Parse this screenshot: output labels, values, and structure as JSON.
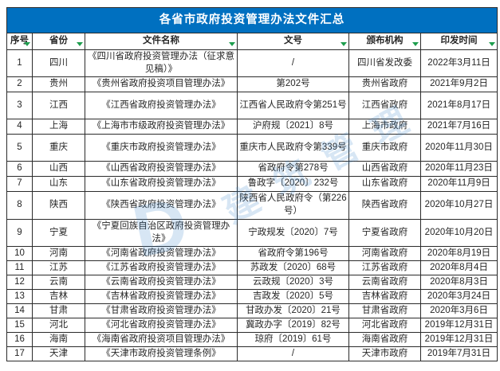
{
  "table": {
    "title": "各省市政府投资管理办法文件汇总",
    "columns": [
      "序号",
      "省份",
      "文件名称",
      "文号",
      "颁布机构",
      "印发时间"
    ],
    "rows": [
      {
        "no": "1",
        "province": "四川",
        "doc_name": "《四川省政府投资管理办法（征求意见稿）》",
        "doc_no": "/",
        "agency": "四川省发改委",
        "date": "2022年3月11日",
        "doc_no_flagged": false
      },
      {
        "no": "2",
        "province": "贵州",
        "doc_name": "《贵州省政府投资项目管理办法》",
        "doc_no": "第202号",
        "agency": "贵州省政府",
        "date": "2021年9月2日",
        "doc_no_flagged": false
      },
      {
        "no": "3",
        "province": "江西",
        "doc_name": "《江西省政府投资管理办法》",
        "doc_no": "江西省人民政府令第251号",
        "agency": "江西省政府",
        "date": "2021年8月17日",
        "doc_no_flagged": false
      },
      {
        "no": "4",
        "province": "上海",
        "doc_name": "《上海市市级政府投资管理办法》",
        "doc_no": "沪府规〔2021〕8号",
        "agency": "上海市政府",
        "date": "2021年7月16日",
        "doc_no_flagged": false
      },
      {
        "no": "5",
        "province": "重庆",
        "doc_name": "《重庆市政府投资管理办法》",
        "doc_no": "重庆市人民政府令第339号",
        "agency": "重庆市政府",
        "date": "2020年11月30日",
        "doc_no_flagged": false
      },
      {
        "no": "6",
        "province": "山西",
        "doc_name": "《山西省政府投资管理办法》",
        "doc_no": "省政府令第278号",
        "agency": "山西省政府",
        "date": "2020年11月23日",
        "doc_no_flagged": true
      },
      {
        "no": "7",
        "province": "山东",
        "doc_name": "《山东省政府投资管理办法》",
        "doc_no": "鲁政字〔2020〕232号",
        "agency": "山东省政府",
        "date": "2020年11月9日",
        "doc_no_flagged": false
      },
      {
        "no": "8",
        "province": "陕西",
        "doc_name": "《陕西省政府投资管理办法》",
        "doc_no": "陕西省人民政府令（第226号）",
        "agency": "陕西省政府",
        "date": "2020年10月27日",
        "doc_no_flagged": false
      },
      {
        "no": "9",
        "province": "宁夏",
        "doc_name": "《宁夏回族自治区政府投资管理办法》",
        "doc_no": "宁政规发〔2020〕7号",
        "agency": "宁夏省政府",
        "date": "2020年10月20日",
        "doc_no_flagged": true
      },
      {
        "no": "10",
        "province": "河南",
        "doc_name": "《河南省政府投资管理办法》",
        "doc_no": "省政府令第196号",
        "agency": "河南省政府",
        "date": "2020年8月19日",
        "doc_no_flagged": false
      },
      {
        "no": "11",
        "province": "江苏",
        "doc_name": "《江苏省政府投资管理办法》",
        "doc_no": "苏政发〔2020〕68号",
        "agency": "江苏省政府",
        "date": "2020年8月4日",
        "doc_no_flagged": false
      },
      {
        "no": "12",
        "province": "云南",
        "doc_name": "《云南省政府投资管理办法》",
        "doc_no": "云政规〔2020〕3号",
        "agency": "云南省政府",
        "date": "2020年8月3日",
        "doc_no_flagged": false
      },
      {
        "no": "13",
        "province": "吉林",
        "doc_name": "《吉林省政府投资管理办法》",
        "doc_no": "吉政发〔2020〕5号",
        "agency": "吉林省政府",
        "date": "2020年3月24日",
        "doc_no_flagged": false
      },
      {
        "no": "14",
        "province": "甘肃",
        "doc_name": "《甘肃省政府投资管理办法》",
        "doc_no": "甘政办发〔2020〕21号",
        "agency": "甘肃省政府",
        "date": "2020年3月6日",
        "doc_no_flagged": false
      },
      {
        "no": "15",
        "province": "河北",
        "doc_name": "《河北省政府投资管理办法》",
        "doc_no": "冀政办字〔2019〕82号",
        "agency": "河北省政府",
        "date": "2019年12月31日",
        "doc_no_flagged": false
      },
      {
        "no": "16",
        "province": "海南",
        "doc_name": "《海南省政府投资项目管理办法》",
        "doc_no": "琼府〔2019〕61号",
        "agency": "海南省政府",
        "date": "2019年12月31日",
        "doc_no_flagged": false
      },
      {
        "no": "17",
        "province": "天津",
        "doc_name": "《天津市政府投资管理条例》",
        "doc_no": "/",
        "agency": "天津市政府",
        "date": "2019年7月31日",
        "doc_no_flagged": false
      }
    ]
  },
  "watermark": {
    "logo": "D",
    "text": "建筑管理"
  },
  "colors": {
    "title_bg": "#0070C0",
    "title_text": "#FFFFFF",
    "filter_icon_green": "#1E9E4E",
    "flag_green": "#2E9E4E",
    "border": "#2B2B2B",
    "watermark_blue": "#3882C9"
  }
}
